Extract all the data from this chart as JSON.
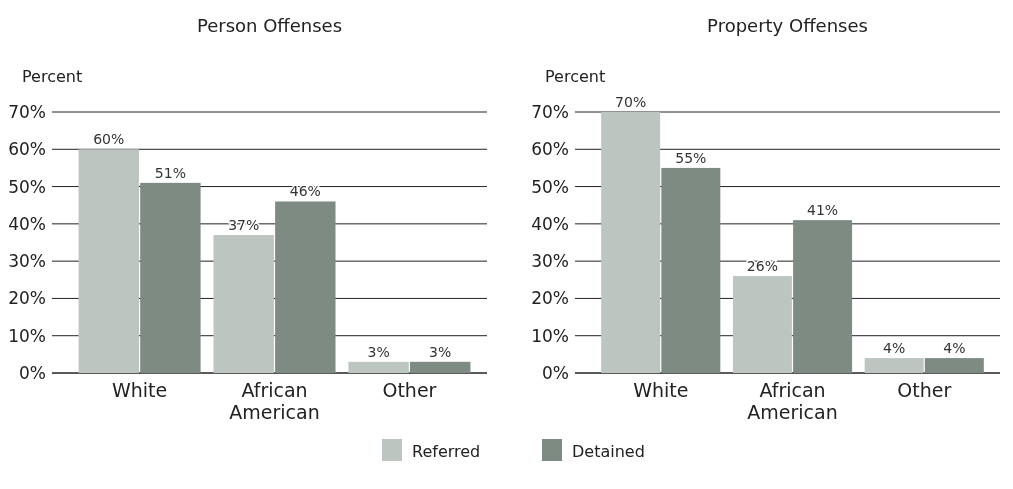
{
  "chart_data": [
    {
      "type": "bar",
      "title": "Person Offenses",
      "ylabel": "Percent",
      "categories": [
        "White",
        "African American",
        "Other"
      ],
      "series": [
        {
          "name": "Referred",
          "color": "#bcc5bf",
          "values": [
            60,
            37,
            3
          ],
          "value_labels": [
            "60%",
            "37%",
            "3%"
          ]
        },
        {
          "name": "Detained",
          "color": "#7d8b83",
          "values": [
            51,
            46,
            3
          ],
          "value_labels": [
            "51%",
            "46%",
            "3%"
          ]
        }
      ],
      "ylim": [
        0,
        70
      ],
      "yticks": [
        {
          "value": 0,
          "label": "0%"
        },
        {
          "value": 10,
          "label": "10%"
        },
        {
          "value": 20,
          "label": "20%"
        },
        {
          "value": 30,
          "label": "30%"
        },
        {
          "value": 40,
          "label": "40%"
        },
        {
          "value": 50,
          "label": "50%"
        },
        {
          "value": 60,
          "label": "60%"
        },
        {
          "value": 70,
          "label": "70%"
        }
      ],
      "grid": "y",
      "legend": "bottom"
    },
    {
      "type": "bar",
      "title": "Property Offenses",
      "ylabel": "Percent",
      "categories": [
        "White",
        "African American",
        "Other"
      ],
      "series": [
        {
          "color": "#bcc5bf",
          "values": [
            70,
            26,
            4
          ],
          "value_labels": [
            "70%",
            "26%",
            "4%"
          ]
        },
        {
          "color": "#7d8b83",
          "values": [
            55,
            41,
            4
          ],
          "value_labels": [
            "55%",
            "41%",
            "4%"
          ]
        }
      ],
      "ylim": [
        0,
        70
      ],
      "yticks": [
        {
          "value": 0,
          "label": "0%"
        },
        {
          "value": 10,
          "label": "10%"
        },
        {
          "value": 20,
          "label": "20%"
        },
        {
          "value": 30,
          "label": "30%"
        },
        {
          "value": 40,
          "label": "40%"
        },
        {
          "value": 50,
          "label": "50%"
        },
        {
          "value": 60,
          "label": "60%"
        },
        {
          "value": 70,
          "label": "70%"
        }
      ],
      "grid": "y"
    }
  ]
}
